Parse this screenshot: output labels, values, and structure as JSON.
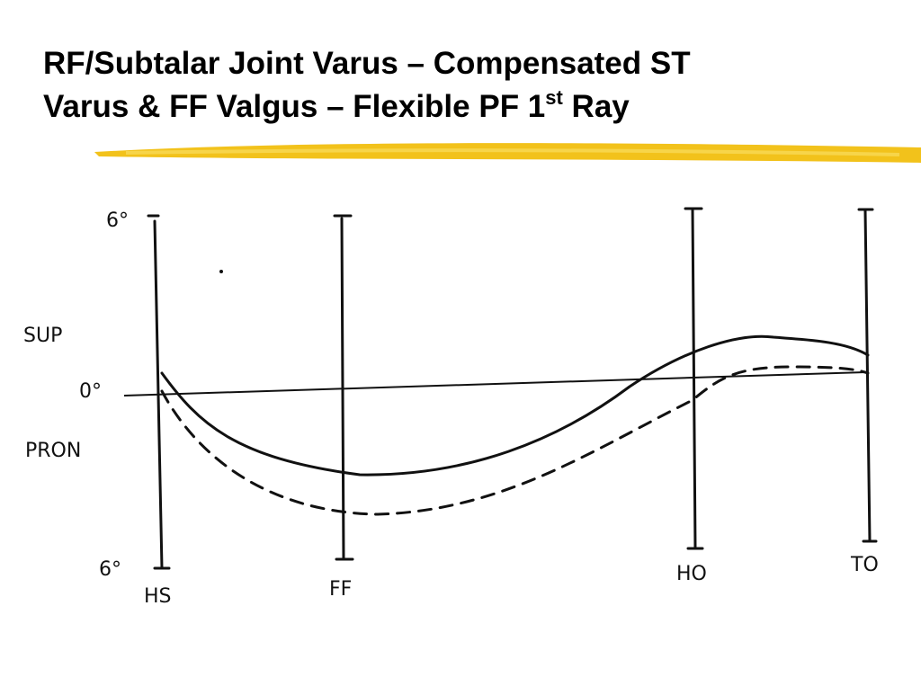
{
  "title": {
    "line1": "RF/Subtalar Joint Varus – Compensated ST",
    "line2": "Varus & FF Valgus – Flexible PF 1",
    "line2_sup": "st",
    "line2_end": " Ray"
  },
  "diagram": {
    "y_labels": {
      "top": "6°",
      "sup": "SUP",
      "zero": "0°",
      "pron": "PRON",
      "bottom": "6°"
    },
    "x_labels": [
      "HS",
      "FF",
      "HO",
      "TO"
    ]
  }
}
